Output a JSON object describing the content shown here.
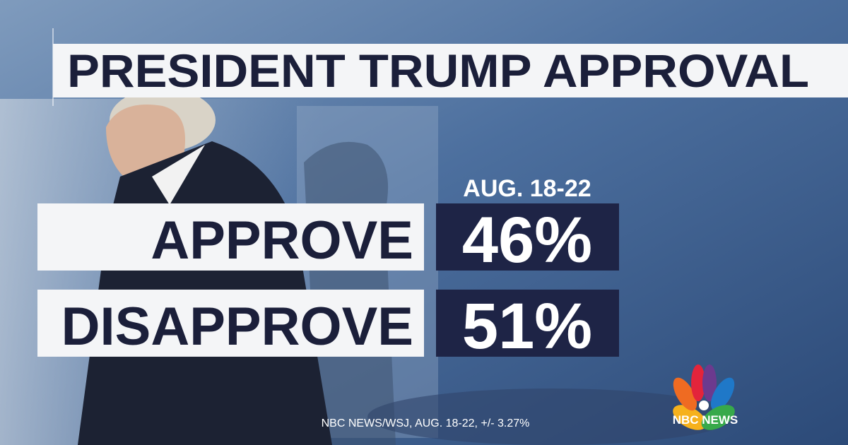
{
  "title": "PRESIDENT TRUMP APPROVAL",
  "column_header": "AUG. 18-22",
  "rows": [
    {
      "label": "APPROVE",
      "value": "46%"
    },
    {
      "label": "DISAPPROVE",
      "value": "51%"
    }
  ],
  "source": "NBC NEWS/WSJ, AUG. 18-22, +/- 3.27%",
  "logo": "NBC NEWS"
}
